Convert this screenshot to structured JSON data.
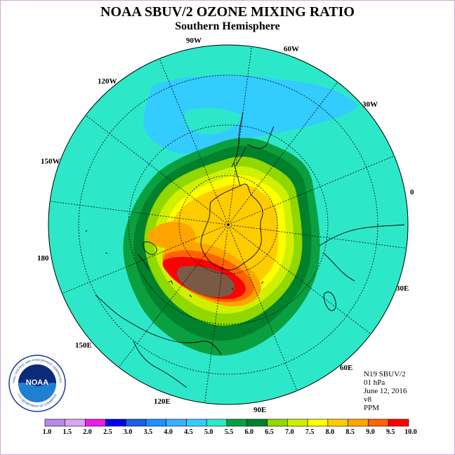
{
  "title": "NOAA SBUV/2 OZONE MIXING RATIO",
  "subtitle": "Southern Hemisphere",
  "longitude_labels": {
    "lon_90w": "90W",
    "lon_60w": "60W",
    "lon_120w": "120W",
    "lon_30w": "30W",
    "lon_150w": "150W",
    "lon_0": "0",
    "lon_180": "180",
    "lon_30e": "30E",
    "lon_150e": "150E",
    "lon_60e": "60E",
    "lon_120e": "120E",
    "lon_90e": "90E"
  },
  "info": {
    "instrument": "N19 SBUV/2",
    "level": "01 hPa",
    "date": "June 12, 2016",
    "version": "v8",
    "units": "PPM"
  },
  "logo": {
    "text": "NOAA",
    "ring_text": "NATIONAL OCEANIC AND ATMOSPHERIC ADMINISTRATION",
    "ring_text_bottom": "U.S. DEPARTMENT OF COMMERCE"
  },
  "colorbar": {
    "ticks": [
      "1.0",
      "1.5",
      "2.0",
      "2.5",
      "3.0",
      "3.5",
      "4.0",
      "4.5",
      "5.0",
      "5.5",
      "6.0",
      "6.5",
      "7.0",
      "7.5",
      "8.0",
      "8.5",
      "9.0",
      "9.5",
      "10.0"
    ],
    "colors": [
      "#b68ae8",
      "#d9a6f2",
      "#e81de8",
      "#0000e6",
      "#1a5fe6",
      "#1e90ff",
      "#3ab0ff",
      "#33ccff",
      "#2de8c8",
      "#0aa040",
      "#00822d",
      "#90d800",
      "#cff000",
      "#ffff00",
      "#ffcc00",
      "#ffa500",
      "#ff6400",
      "#ff0000",
      "#7a5a44"
    ]
  },
  "map_colors": {
    "ocean_background": "#2de8c8",
    "low_band": "#33ccff",
    "level_5_5": "#0aa040",
    "level_6_0": "#00822d",
    "level_6_5": "#90d800",
    "level_7_0": "#cff000",
    "level_7_5": "#ffff00",
    "level_8_0": "#ffcc00",
    "level_8_5": "#ffa500",
    "level_9_0": "#ff6400",
    "level_9_5": "#ff0000",
    "level_10_0": "#7a5a44"
  }
}
